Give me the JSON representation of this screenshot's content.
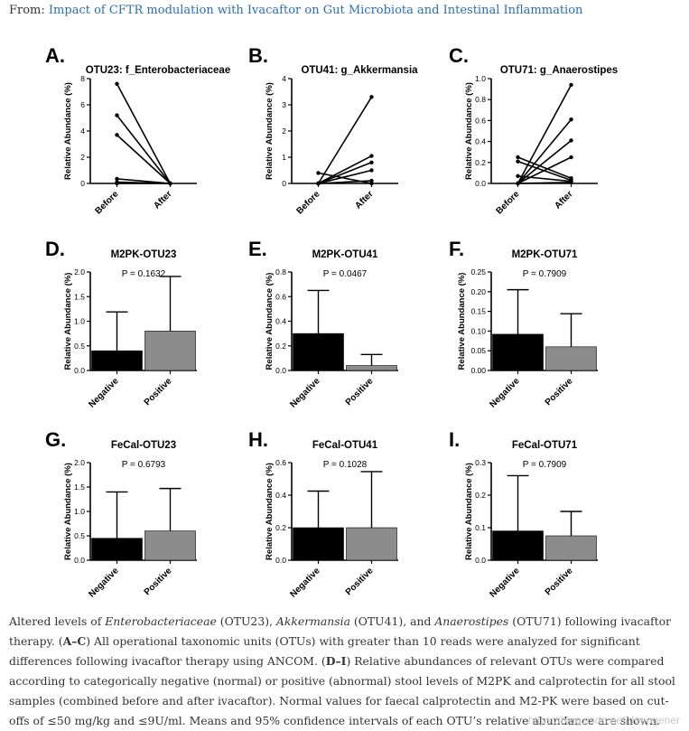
{
  "header": {
    "from_label": "From:",
    "article_title": "Impact of CFTR modulation with Ivacaftor on Gut Microbiota and Intestinal Inflammation"
  },
  "colors": {
    "black_bar": "#000000",
    "gray_bar": "#8c8c8c",
    "link": "#2a6db5"
  },
  "chart_data": [
    {
      "panel": "A.",
      "type": "line",
      "title": "OTU23: f_Enterobacteriaceae",
      "ylabel": "Relative Abundance (%)",
      "categories": [
        "Before",
        "After"
      ],
      "ylim": [
        0,
        8
      ],
      "yticks": [
        0,
        2,
        4,
        6,
        8
      ],
      "lines": [
        [
          7.6,
          0.0
        ],
        [
          5.2,
          0.0
        ],
        [
          3.7,
          0.0
        ],
        [
          0.35,
          0.0
        ],
        [
          0.1,
          0.0
        ],
        [
          0.0,
          0.0
        ]
      ]
    },
    {
      "panel": "B.",
      "type": "line",
      "title": "OTU41: g_Akkermansia",
      "ylabel": "Relative Abundance (%)",
      "categories": [
        "Before",
        "After"
      ],
      "ylim": [
        0,
        4
      ],
      "yticks": [
        0,
        1,
        2,
        3,
        4
      ],
      "lines": [
        [
          0.4,
          0.0
        ],
        [
          0.0,
          3.3
        ],
        [
          0.0,
          1.05
        ],
        [
          0.0,
          0.8
        ],
        [
          0.0,
          0.5
        ],
        [
          0.0,
          0.1
        ]
      ]
    },
    {
      "panel": "C.",
      "type": "line",
      "title": "OTU71: g_Anaerostipes",
      "ylabel": "Relative Abundance (%)",
      "categories": [
        "Before",
        "After"
      ],
      "ylim": [
        0,
        1.0
      ],
      "yticks": [
        "0.0",
        "0.2",
        "0.4",
        "0.6",
        "0.8",
        "1.0"
      ],
      "lines": [
        [
          0.25,
          0.05
        ],
        [
          0.21,
          0.03
        ],
        [
          0.07,
          0.02
        ],
        [
          0.0,
          0.94
        ],
        [
          0.0,
          0.61
        ],
        [
          0.0,
          0.41
        ],
        [
          0.0,
          0.25
        ],
        [
          0.0,
          0.01
        ]
      ]
    },
    {
      "panel": "D.",
      "type": "bar",
      "title": "M2PK-OTU23",
      "pvalue": "P = 0.1632",
      "ylabel": "Relative Abundance (%)",
      "categories": [
        "Negative",
        "Positive"
      ],
      "values": [
        0.4,
        0.8
      ],
      "errors": [
        1.19,
        1.91
      ],
      "ylim": [
        0,
        2.0
      ],
      "yticks": [
        "0.0",
        "0.5",
        "1.0",
        "1.5",
        "2.0"
      ]
    },
    {
      "panel": "E.",
      "type": "bar",
      "title": "M2PK-OTU41",
      "pvalue": "P = 0.0467",
      "ylabel": "Relative Abundance (%)",
      "categories": [
        "Negative",
        "Positive"
      ],
      "values": [
        0.3,
        0.04
      ],
      "errors": [
        0.65,
        0.13
      ],
      "ylim": [
        0,
        0.8
      ],
      "yticks": [
        "0.0",
        "0.2",
        "0.4",
        "0.6",
        "0.8"
      ]
    },
    {
      "panel": "F.",
      "type": "bar",
      "title": "M2PK-OTU71",
      "pvalue": "P = 0.7909",
      "ylabel": "Relative Abundance (%)",
      "categories": [
        "Negative",
        "Positive"
      ],
      "values": [
        0.092,
        0.06
      ],
      "errors": [
        0.205,
        0.144
      ],
      "ylim": [
        0,
        0.25
      ],
      "yticks": [
        "0.00",
        "0.05",
        "0.10",
        "0.15",
        "0.20",
        "0.25"
      ]
    },
    {
      "panel": "G.",
      "type": "bar",
      "title": "FeCal-OTU23",
      "pvalue": "P = 0.6793",
      "ylabel": "Relative Abundance (%)",
      "categories": [
        "Negative",
        "Positive"
      ],
      "values": [
        0.45,
        0.6
      ],
      "errors": [
        1.4,
        1.47
      ],
      "ylim": [
        0,
        2.0
      ],
      "yticks": [
        "0.0",
        "0.5",
        "1.0",
        "1.5",
        "2.0"
      ]
    },
    {
      "panel": "H.",
      "type": "bar",
      "title": "FeCal-OTU41",
      "pvalue": "P = 0.1028",
      "ylabel": "Relative Abundance (%)",
      "categories": [
        "Negative",
        "Positive"
      ],
      "values": [
        0.2,
        0.2
      ],
      "errors": [
        0.425,
        0.545
      ],
      "ylim": [
        0,
        0.6
      ],
      "yticks": [
        "0.0",
        "0.2",
        "0.4",
        "0.6"
      ]
    },
    {
      "panel": "I.",
      "type": "bar",
      "title": "FeCal-OTU71",
      "pvalue": "P = 0.7909",
      "ylabel": "Relative Abundance (%)",
      "categories": [
        "Negative",
        "Positive"
      ],
      "values": [
        0.09,
        0.075
      ],
      "errors": [
        0.26,
        0.15
      ],
      "ylim": [
        0,
        0.3
      ],
      "yticks": [
        "0.0",
        "0.1",
        "0.2",
        "0.3"
      ]
    }
  ],
  "caption": {
    "s1": "Altered levels of ",
    "t1": "Enterobacteriaceae",
    "s2": " (OTU23), ",
    "t2": "Akkermansia",
    "s3": " (OTU41), and ",
    "t3": "Anaerostipes",
    "s4": " (OTU71) following ivacaftor therapy. (",
    "b1": "A–C",
    "s5": ") All operational taxonomic units (OTUs) with greater than 10 reads were analyzed for significant differences following ivacaftor therapy using ANCOM. (",
    "b2": "D–I",
    "s6": ") Relative abundances of relevant OTUs were compared according to categorically negative (normal) or positive (abnormal) stool levels of M2PK and calprotectin for all stool samples (combined before and after ivacaftor). Normal values for faecal calprotectin and M2-PK were based on cut-offs of ≤50 mg/kg and ≤9U/ml. Means and 95% confidence intervals of each OTU’s relative abundance are shown."
  },
  "watermark": "https://blog.csdn.net/deepgener"
}
